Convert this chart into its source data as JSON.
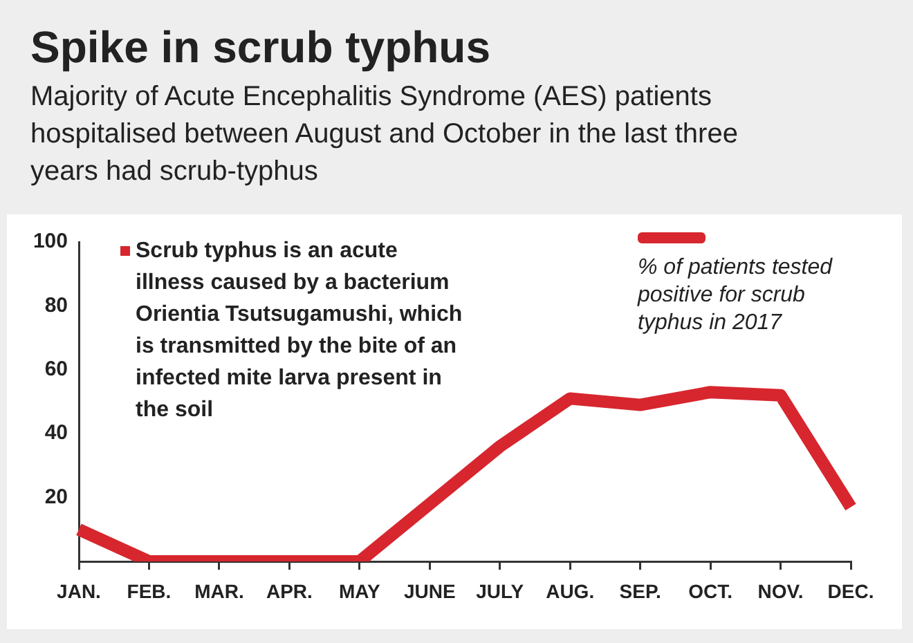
{
  "chart_data": {
    "type": "line",
    "title": "Spike in scrub typhus",
    "subtitle": "Majority of Acute Encephalitis Syndrome (AES) patients hospitalised between August and October in the last three years had scrub-typhus",
    "annotations": [
      "Scrub typhus is an acute illness caused by a bacterium Orientia Tsutsugamushi, which is transmitted by the bite of an infected mite larva present in the soil"
    ],
    "categories": [
      "JAN.",
      "FEB.",
      "MAR.",
      "APR.",
      "MAY",
      "JUNE",
      "JULY",
      "AUG.",
      "SEP.",
      "OCT.",
      "NOV.",
      "DEC."
    ],
    "series": [
      {
        "name": "% of patients tested positive for scrub typhus in 2017",
        "color": "#d7262e",
        "values": [
          10,
          0,
          0,
          0,
          0,
          18,
          36,
          51,
          49,
          53,
          52,
          17
        ]
      }
    ],
    "ylim": [
      0,
      100
    ],
    "yticks": [
      20,
      40,
      60,
      80,
      100
    ],
    "grid": false,
    "legend": "top right",
    "marker": "none",
    "line_style": "solid"
  }
}
